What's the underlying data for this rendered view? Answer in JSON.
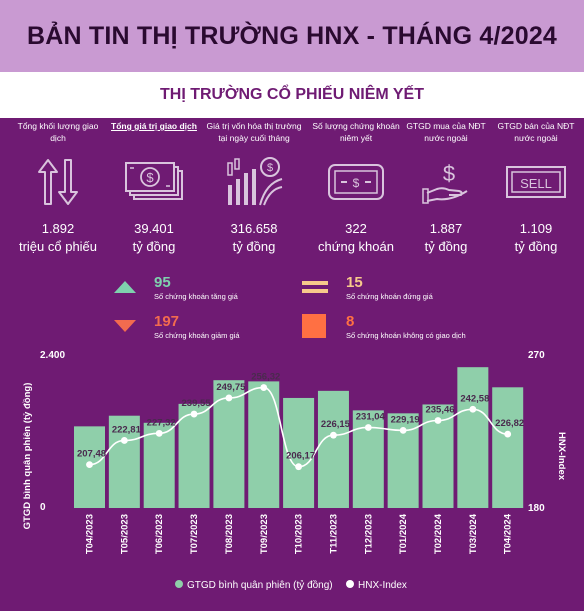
{
  "header": {
    "title": "BẢN TIN THỊ TRƯỜNG HNX - THÁNG 4/2024"
  },
  "subheader": {
    "title": "THỊ TRƯỜNG CỔ PHIẾU NIÊM YẾT"
  },
  "stats": [
    {
      "label": "Tổng khối lượng giao dịch",
      "value": "1.892",
      "unit": "triệu cổ phiếu",
      "icon": "up-down-arrows-icon"
    },
    {
      "label": "Tổng giá trị giao dịch",
      "value": "39.401",
      "unit": "tỷ đồng",
      "icon": "banknotes-icon"
    },
    {
      "label": "Giá trị vốn hóa thị trường tại ngày cuối tháng",
      "value": "316.658",
      "unit": "tỷ đồng",
      "icon": "growth-chart-coin-icon"
    },
    {
      "label": "Số lượng chứng khoán niêm yết",
      "value": "322",
      "unit": "chứng khoán",
      "icon": "money-bill-icon"
    },
    {
      "label": "GTGD mua của NĐT nước ngoài",
      "value": "1.887",
      "unit": "tỷ đồng",
      "icon": "hand-dollar-icon"
    },
    {
      "label": "GTGD bán của NĐT nước ngoài",
      "value": "1.109",
      "unit": "tỷ đồng",
      "icon": "sell-sign-icon"
    }
  ],
  "breadth": {
    "advancing": {
      "count": "95",
      "label": "Số chứng khoán tăng giá",
      "color": "#7fd1ae"
    },
    "unchanged": {
      "count": "15",
      "label": "Số chứng khoán đứng giá",
      "color": "#f7c98b"
    },
    "declining": {
      "count": "197",
      "label": "Số chứng khoán giảm giá",
      "color": "#f26b4f"
    },
    "no_trade": {
      "count": "8",
      "label": "Số chứng khoán không có giao dịch",
      "color": "#ff7043"
    }
  },
  "chart_data": {
    "type": "bar",
    "categories": [
      "T04/2023",
      "T05/2023",
      "T06/2023",
      "T07/2023",
      "T08/2023",
      "T09/2023",
      "T10/2023",
      "T11/2023",
      "T12/2023",
      "T01/2024",
      "T02/2024",
      "T03/2024",
      "T04/2024"
    ],
    "series": [
      {
        "name": "GTGD bình quân phiên (tỷ đồng)",
        "type": "bar",
        "color": "#8fcfaa",
        "values": [
          1380,
          1560,
          1440,
          1760,
          2160,
          2140,
          1860,
          1980,
          1650,
          1600,
          1750,
          2380,
          2040
        ]
      },
      {
        "name": "HNX-Index",
        "type": "line",
        "color": "#ffffff",
        "values": [
          207.48,
          222.81,
          227.32,
          239.55,
          249.75,
          256.32,
          206.17,
          226.15,
          231.04,
          229.19,
          235.46,
          242.58,
          226.82
        ]
      }
    ],
    "labels": [
      "207,48",
      "222,81",
      "227,32",
      "239,55",
      "249,75",
      "256,32",
      "206,17",
      "226,15",
      "231,04",
      "229,19",
      "235,46",
      "242,58",
      "226,82"
    ],
    "ylabel": "GTGD bình quân phiên (tỷ đồng)",
    "ylabel_right": "HNX-Index",
    "ylim": [
      0,
      2400
    ],
    "ylim_right": [
      180,
      270
    ],
    "ytick_labels": [
      "0",
      "2.400"
    ],
    "ytick_labels_right": [
      "180",
      "270"
    ],
    "legend_position": "bottom"
  }
}
